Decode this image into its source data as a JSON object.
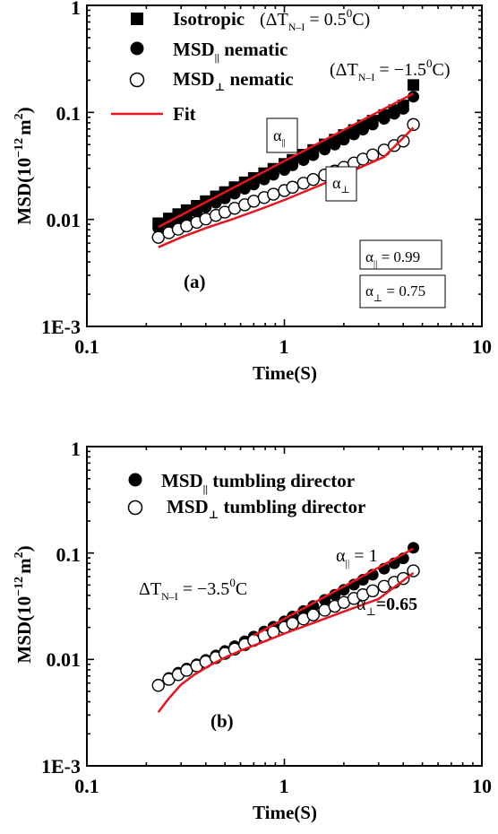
{
  "chart_data": [
    {
      "type": "scatter",
      "panel_label": "(a)",
      "xlabel": "Time(S)",
      "ylabel": "MSD(10^-12 m^2)",
      "xscale": "log",
      "yscale": "log",
      "xlim": [
        0.1,
        10
      ],
      "ylim": [
        0.001,
        1
      ],
      "x_ticks": [
        "0.1",
        "1",
        "10"
      ],
      "y_ticks": [
        "1E-3",
        "0.01",
        "0.1",
        "1"
      ],
      "legend": [
        {
          "marker": "filled-square",
          "label": "Isotropic",
          "extra": "(ΔT_N–I = 0.5°C)"
        },
        {
          "marker": "filled-circle",
          "label": "MSD_∥ nematic"
        },
        {
          "marker": "open-circle",
          "label": "MSD_⊥ nematic",
          "extra": "(ΔT_N–I = −1.5°C)"
        },
        {
          "marker": "red-line",
          "label": "Fit"
        }
      ],
      "annotations": [
        "α_∥",
        "α_⊥",
        "α_∥ = 0.99",
        "α_⊥ = 0.75"
      ],
      "series": [
        {
          "name": "Isotropic",
          "marker": "filled-square",
          "color": "#000000",
          "x": [
            0.23,
            0.26,
            0.29,
            0.32,
            0.36,
            0.4,
            0.45,
            0.5,
            0.56,
            0.63,
            0.7,
            0.79,
            0.88,
            1.0,
            1.1,
            1.25,
            1.4,
            1.6,
            1.8,
            2.0,
            2.25,
            2.5,
            2.8,
            3.2,
            3.6,
            4.0,
            4.5
          ],
          "y": [
            0.0092,
            0.0102,
            0.0112,
            0.0122,
            0.0134,
            0.0148,
            0.0164,
            0.018,
            0.02,
            0.0222,
            0.0244,
            0.027,
            0.0297,
            0.033,
            0.036,
            0.0402,
            0.0445,
            0.0502,
            0.0556,
            0.0614,
            0.0683,
            0.0756,
            0.0836,
            0.0944,
            0.105,
            0.116,
            0.18
          ]
        },
        {
          "name": "MSD_∥ nematic",
          "marker": "filled-circle",
          "color": "#000000",
          "x": [
            0.23,
            0.26,
            0.29,
            0.32,
            0.36,
            0.4,
            0.45,
            0.5,
            0.56,
            0.63,
            0.7,
            0.79,
            0.88,
            1.0,
            1.1,
            1.25,
            1.4,
            1.6,
            1.8,
            2.0,
            2.25,
            2.5,
            2.8,
            3.2,
            3.6,
            4.0,
            4.5
          ],
          "y": [
            0.0083,
            0.0091,
            0.0099,
            0.0107,
            0.0118,
            0.013,
            0.0143,
            0.0157,
            0.0174,
            0.0193,
            0.0212,
            0.0236,
            0.0261,
            0.029,
            0.032,
            0.0358,
            0.0398,
            0.045,
            0.05,
            0.0556,
            0.0622,
            0.069,
            0.077,
            0.087,
            0.097,
            0.108,
            0.14
          ]
        },
        {
          "name": "MSD_⊥ nematic",
          "marker": "open-circle",
          "color": "#000000",
          "x": [
            0.23,
            0.26,
            0.29,
            0.32,
            0.36,
            0.4,
            0.45,
            0.5,
            0.56,
            0.63,
            0.7,
            0.79,
            0.88,
            1.0,
            1.1,
            1.25,
            1.4,
            1.6,
            1.8,
            2.0,
            2.25,
            2.5,
            2.8,
            3.2,
            3.6,
            4.0,
            4.5
          ],
          "y": [
            0.0068,
            0.0075,
            0.0081,
            0.0087,
            0.0094,
            0.0101,
            0.0109,
            0.0117,
            0.0127,
            0.0137,
            0.0148,
            0.016,
            0.0172,
            0.0186,
            0.02,
            0.0218,
            0.0236,
            0.026,
            0.0283,
            0.0307,
            0.0336,
            0.0366,
            0.04,
            0.0445,
            0.049,
            0.054,
            0.077
          ]
        },
        {
          "name": "Fit ∥",
          "marker": "red-line",
          "color": "#e8141e",
          "x": [
            0.23,
            4.5
          ],
          "y": [
            0.0085,
            0.15
          ]
        },
        {
          "name": "Fit ⊥",
          "marker": "red-line",
          "color": "#e8141e",
          "x": [
            0.23,
            0.3,
            0.4,
            0.55,
            0.75,
            1.0,
            1.5,
            2.2,
            3.2,
            4.5
          ],
          "y": [
            0.0055,
            0.0068,
            0.0083,
            0.0101,
            0.0124,
            0.0152,
            0.0207,
            0.0282,
            0.0384,
            0.072
          ]
        }
      ]
    },
    {
      "type": "scatter",
      "panel_label": "(b)",
      "xlabel": "Time(S)",
      "ylabel": "MSD(10^-12 m^2)",
      "xscale": "log",
      "yscale": "log",
      "xlim": [
        0.1,
        10
      ],
      "ylim": [
        0.001,
        1
      ],
      "x_ticks": [
        "0.1",
        "1",
        "10"
      ],
      "y_ticks": [
        "1E-3",
        "0.01",
        "0.1",
        "1"
      ],
      "legend": [
        {
          "marker": "filled-circle",
          "label": "MSD_∥ tumbling director"
        },
        {
          "marker": "open-circle",
          "label": "MSD_⊥ tumbling director"
        }
      ],
      "annotations": [
        "ΔT_N–I = −3.5°C",
        "α_∥ = 1",
        "α_⊥ = 0.65"
      ],
      "series": [
        {
          "name": "MSD_∥ tumbling director",
          "marker": "filled-circle",
          "color": "#000000",
          "x": [
            0.23,
            0.26,
            0.29,
            0.32,
            0.36,
            0.4,
            0.45,
            0.5,
            0.56,
            0.63,
            0.7,
            0.79,
            0.88,
            1.0,
            1.1,
            1.25,
            1.4,
            1.6,
            1.8,
            2.0,
            2.25,
            2.5,
            2.8,
            3.2,
            3.6,
            4.0,
            4.5
          ],
          "y": [
            0.0058,
            0.0067,
            0.0075,
            0.0082,
            0.009,
            0.0099,
            0.0109,
            0.012,
            0.0133,
            0.0148,
            0.0164,
            0.0183,
            0.0203,
            0.0228,
            0.0253,
            0.0285,
            0.0318,
            0.0362,
            0.0405,
            0.0451,
            0.0505,
            0.056,
            0.0625,
            0.0712,
            0.08,
            0.089,
            0.112
          ]
        },
        {
          "name": "MSD_⊥ tumbling director",
          "marker": "open-circle",
          "color": "#000000",
          "x": [
            0.23,
            0.26,
            0.29,
            0.32,
            0.36,
            0.4,
            0.45,
            0.5,
            0.56,
            0.63,
            0.7,
            0.79,
            0.88,
            1.0,
            1.1,
            1.25,
            1.4,
            1.6,
            1.8,
            2.0,
            2.25,
            2.5,
            2.8,
            3.2,
            3.6,
            4.0,
            4.5
          ],
          "y": [
            0.0057,
            0.0065,
            0.0072,
            0.0079,
            0.0087,
            0.0095,
            0.0104,
            0.0114,
            0.0125,
            0.0138,
            0.0151,
            0.0166,
            0.0181,
            0.02,
            0.0218,
            0.024,
            0.0262,
            0.029,
            0.0316,
            0.0343,
            0.0374,
            0.0405,
            0.0441,
            0.0486,
            0.0531,
            0.0576,
            0.068
          ]
        },
        {
          "name": "Fit ∥",
          "marker": "red-line",
          "color": "#e8141e",
          "x": [
            0.7,
            4.5
          ],
          "y": [
            0.0168,
            0.11
          ]
        },
        {
          "name": "Fit ⊥",
          "marker": "red-line",
          "color": "#e8141e",
          "x": [
            0.23,
            0.26,
            0.3,
            0.35,
            0.42,
            0.5,
            0.6,
            0.75,
            1.0,
            1.4,
            2.0,
            3.0,
            4.5
          ],
          "y": [
            0.0032,
            0.0043,
            0.0058,
            0.0072,
            0.0088,
            0.0104,
            0.0121,
            0.0142,
            0.0175,
            0.022,
            0.0282,
            0.037,
            0.065
          ]
        }
      ]
    }
  ],
  "text": {
    "a": {
      "leg1": "Isotropic",
      "leg1_extra": "(ΔT",
      "leg1_sub": "N–I",
      "leg1_val": " = 0.5",
      "leg1_sup": "0",
      "leg1_end": "C)",
      "leg2": "MSD",
      "leg2_sub": "||",
      "leg2_end": " nematic",
      "leg3": "MSD",
      "leg3_sub": "⊥",
      "leg3_end": " nematic",
      "leg3_extra": "(ΔT",
      "leg3_sub2": "N–I",
      "leg3_val": " = −1.5",
      "leg3_sup": "0",
      "leg3_end2": "C)",
      "leg4": "Fit",
      "alpha_par": "α",
      "alpha_par_sub": "||",
      "alpha_perp": "α",
      "alpha_perp_sub": "⊥",
      "box1": "α",
      "box1_sub": "||",
      "box1_val": " = 0.99",
      "box2": "α",
      "box2_sub": "⊥",
      "box2_val": " = 0.75",
      "panel": "(a)",
      "ylabel": "MSD(10",
      "ylabel_sup": "−12",
      "ylabel_mid": "m",
      "ylabel_sup2": "2",
      "ylabel_end": ")",
      "xlabel": "Time(S)"
    },
    "b": {
      "leg1": "MSD",
      "leg1_sub": "||",
      "leg1_end": " tumbling director",
      "leg2": "MSD",
      "leg2_sub": "⊥",
      "leg2_end": " tumbling director",
      "dt": "ΔT",
      "dt_sub": "N–I",
      "dt_val": " = −3.5",
      "dt_sup": "0",
      "dt_end": "C",
      "alpha_par": "α",
      "alpha_par_sub": "||",
      "alpha_par_val": " = 1",
      "alpha_perp": "α",
      "alpha_perp_sub": "⊥",
      "alpha_perp_val": "=0.65",
      "panel": "(b)",
      "ylabel": "MSD(10",
      "ylabel_sup": "−12",
      "ylabel_mid": "m",
      "ylabel_sup2": "2",
      "ylabel_end": ")",
      "xlabel": "Time(S)"
    },
    "ticks": {
      "x0": "0.1",
      "x1": "1",
      "x2": "10",
      "y0": "1E-3",
      "y1": "0.01",
      "y2": "0.1",
      "y3": "1"
    }
  }
}
